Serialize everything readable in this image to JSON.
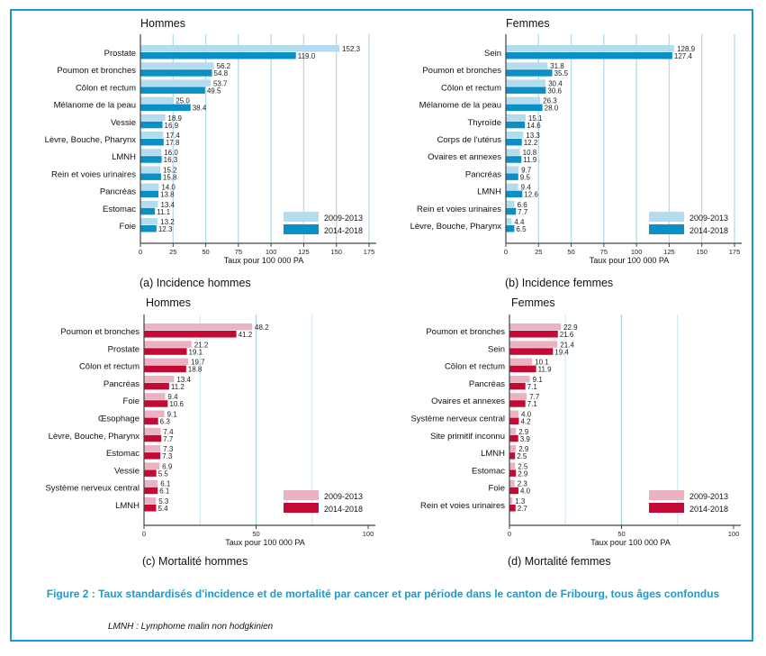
{
  "figure": {
    "title": "Figure 2 : Taux standardisés d'incidence et de mortalité par cancer et par période dans le canton de Fribourg, tous âges confondus",
    "footnote": "LMNH : Lymphome malin non hodgkinien",
    "frame_color": "#1a9bd0"
  },
  "chart_data": [
    {
      "id": "a",
      "type": "bar",
      "orientation": "horizontal",
      "title": "Hommes",
      "caption": "(a) Incidence hommes",
      "xlabel": "Taux pour 100 000 PA",
      "xlim": [
        0,
        175
      ],
      "xticks": [
        0,
        25,
        50,
        75,
        100,
        125,
        150,
        175
      ],
      "grid": true,
      "legend_position": "bottom-right",
      "categories": [
        "Prostate",
        "Poumon et bronches",
        "Côlon et rectum",
        "Mélanome de la peau",
        "Vessie",
        "Lèvre, Bouche, Pharynx",
        "LMNH",
        "Rein et voies urinaires",
        "Pancréas",
        "Estomac",
        "Foie"
      ],
      "series": [
        {
          "name": "2009-2013",
          "color": "#b3dcee",
          "values": [
            152.3,
            56.2,
            53.7,
            25.0,
            18.9,
            17.4,
            16.0,
            15.2,
            14.0,
            13.4,
            13.2
          ]
        },
        {
          "name": "2014-2018",
          "color": "#0a8fc6",
          "values": [
            119.0,
            54.8,
            49.5,
            38.4,
            16.9,
            17.8,
            16.3,
            15.8,
            13.8,
            11.1,
            12.3
          ]
        }
      ]
    },
    {
      "id": "b",
      "type": "bar",
      "orientation": "horizontal",
      "title": "Femmes",
      "caption": "(b) Incidence femmes",
      "xlabel": "Taux pour 100 000 PA",
      "xlim": [
        0,
        175
      ],
      "xticks": [
        0,
        25,
        50,
        75,
        100,
        125,
        150,
        175
      ],
      "grid": true,
      "legend_position": "bottom-right",
      "categories": [
        "Sein",
        "Poumon et bronches",
        "Côlon et rectum",
        "Mélanome de la peau",
        "Thyroïde",
        "Corps de l'utérus",
        "Ovaires et annexes",
        "Pancréas",
        "LMNH",
        "Rein et voies urinaires",
        "Lèvre, Bouche, Pharynx"
      ],
      "series": [
        {
          "name": "2009-2013",
          "color": "#b3dcee",
          "values": [
            128.9,
            31.8,
            30.4,
            26.3,
            15.1,
            13.3,
            10.8,
            9.7,
            9.4,
            6.6,
            4.4
          ]
        },
        {
          "name": "2014-2018",
          "color": "#0a8fc6",
          "values": [
            127.4,
            35.5,
            30.6,
            28.0,
            14.6,
            12.2,
            11.9,
            9.5,
            12.6,
            7.7,
            6.5
          ]
        }
      ]
    },
    {
      "id": "c",
      "type": "bar",
      "orientation": "horizontal",
      "title": "Hommes",
      "caption": "(c) Mortalité hommes",
      "xlabel": "Taux pour 100 000 PA",
      "xlim": [
        0,
        100
      ],
      "xticks": [
        0,
        50,
        100
      ],
      "grid": true,
      "legend_position": "bottom-right",
      "categories": [
        "Poumon et bronches",
        "Prostate",
        "Côlon et rectum",
        "Pancréas",
        "Foie",
        "Œsophage",
        "Lèvre, Bouche, Pharynx",
        "Estomac",
        "Vessie",
        "Système nerveux central",
        "LMNH"
      ],
      "series": [
        {
          "name": "2009-2013",
          "color": "#ebb3c1",
          "values": [
            48.2,
            21.2,
            19.7,
            13.4,
            9.4,
            9.1,
            7.4,
            7.3,
            6.9,
            6.1,
            5.3
          ]
        },
        {
          "name": "2014-2018",
          "color": "#c30a35",
          "values": [
            41.2,
            19.1,
            18.8,
            11.2,
            10.6,
            6.3,
            7.7,
            7.3,
            5.5,
            6.1,
            5.4
          ]
        }
      ]
    },
    {
      "id": "d",
      "type": "bar",
      "orientation": "horizontal",
      "title": "Femmes",
      "caption": "(d) Mortalité femmes",
      "xlabel": "Taux pour 100 000 PA",
      "xlim": [
        0,
        100
      ],
      "xticks": [
        0,
        50,
        100
      ],
      "grid": true,
      "legend_position": "bottom-right",
      "categories": [
        "Poumon et bronches",
        "Sein",
        "Côlon et rectum",
        "Pancréas",
        "Ovaires et annexes",
        "Système nerveux central",
        "Site primitif inconnu",
        "LMNH",
        "Estomac",
        "Foie",
        "Rein et voies urinaires"
      ],
      "series": [
        {
          "name": "2009-2013",
          "color": "#ebb3c1",
          "values": [
            22.9,
            21.4,
            10.1,
            9.1,
            7.7,
            4.0,
            2.9,
            2.9,
            2.5,
            2.3,
            1.3
          ]
        },
        {
          "name": "2014-2018",
          "color": "#c30a35",
          "values": [
            21.6,
            19.4,
            11.9,
            7.1,
            7.1,
            4.2,
            3.9,
            2.5,
            2.9,
            4.0,
            2.7
          ]
        }
      ]
    }
  ]
}
